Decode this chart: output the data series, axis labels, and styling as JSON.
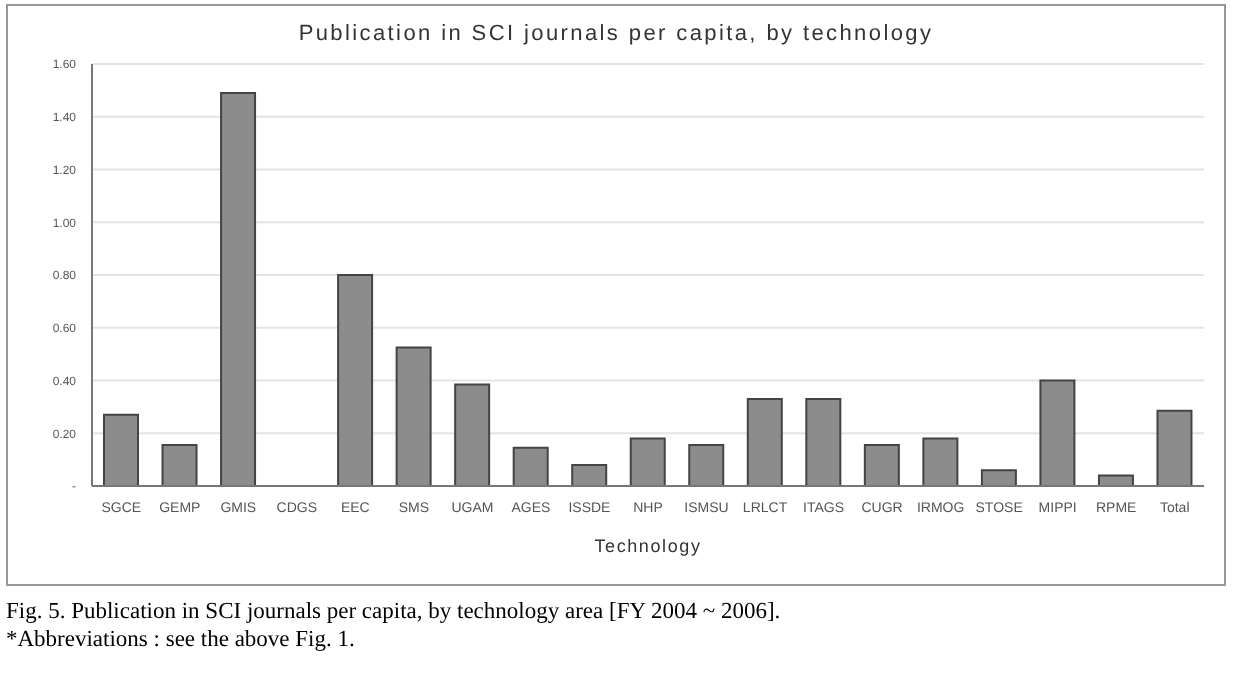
{
  "chart_data": {
    "type": "bar",
    "title": "Publication in SCI journals per capita, by technology",
    "xlabel": "Technology",
    "categories": [
      "SGCE",
      "GEMP",
      "GMIS",
      "CDGS",
      "EEC",
      "SMS",
      "UGAM",
      "AGES",
      "ISSDE",
      "NHP",
      "ISMSU",
      "LRLCT",
      "ITAGS",
      "CUGR",
      "IRMOG",
      "STOSE",
      "MIPPI",
      "RPME",
      "Total"
    ],
    "values": [
      0.27,
      0.155,
      1.49,
      0,
      0.8,
      0.525,
      0.385,
      0.145,
      0.08,
      0.18,
      0.155,
      0.33,
      0.33,
      0.155,
      0.18,
      0.06,
      0.4,
      0.04,
      0.285
    ],
    "color": "#8c8c8c",
    "ylim": [
      0,
      1.6
    ],
    "yticks": [
      {
        "value": 0,
        "label": "-"
      },
      {
        "value": 0.2,
        "label": "0.20"
      },
      {
        "value": 0.4,
        "label": "0.40"
      },
      {
        "value": 0.6,
        "label": "0.60"
      },
      {
        "value": 0.8,
        "label": "0.80"
      },
      {
        "value": 1,
        "label": "1.00"
      },
      {
        "value": 1.2,
        "label": "1.20"
      },
      {
        "value": 1.4,
        "label": "1.40"
      },
      {
        "value": 1.6,
        "label": "1.60"
      }
    ],
    "grid": "y",
    "annotations": [
      "Fig. 5. Publication in SCI journals per capita, by technology area [FY 2004 ~ 2006].",
      "*Abbreviations : see the above Fig. 1."
    ]
  }
}
